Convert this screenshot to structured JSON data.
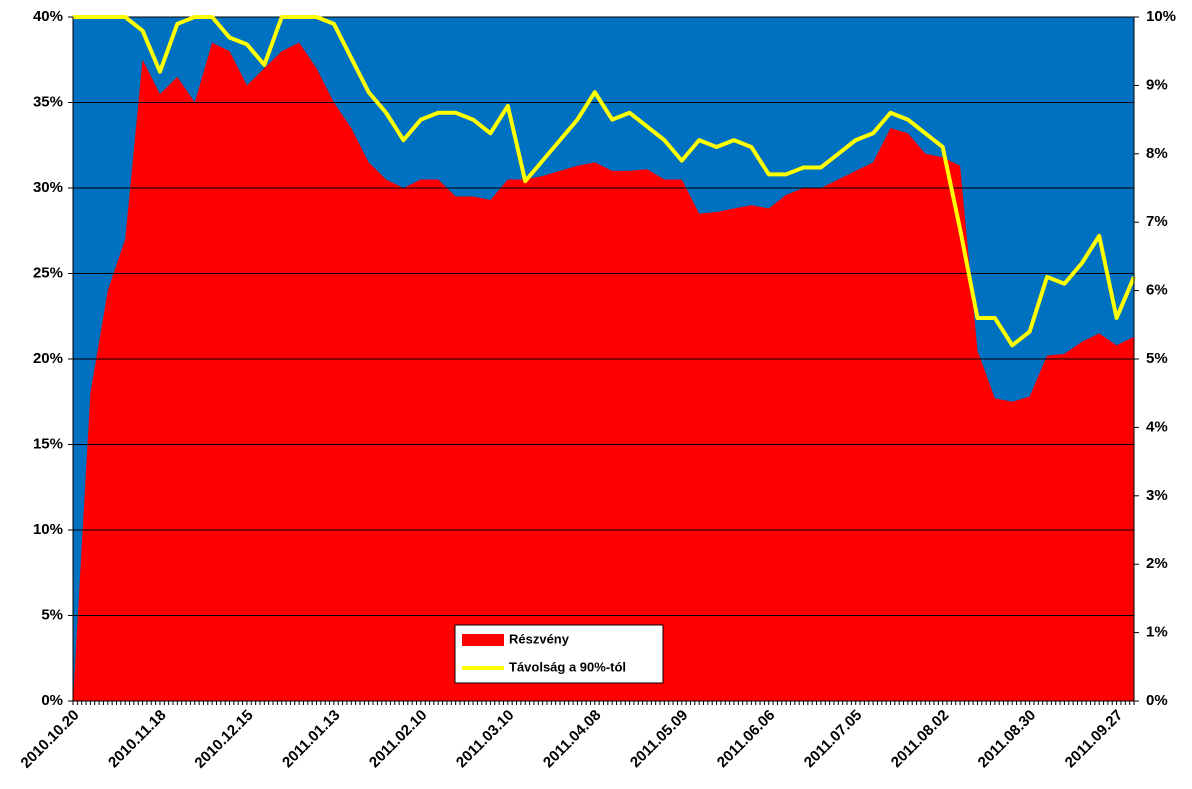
{
  "chart_data": {
    "type": "area_line",
    "categories": [
      "2010.10.20",
      null,
      null,
      null,
      null,
      "2010.11.18",
      null,
      null,
      null,
      null,
      "2010.12.15",
      null,
      null,
      null,
      null,
      "2011.01.13",
      null,
      null,
      null,
      null,
      "2011.02.10",
      null,
      null,
      null,
      null,
      "2011.03.10",
      null,
      null,
      null,
      null,
      "2011.04.08",
      null,
      null,
      null,
      null,
      "2011.05.09",
      null,
      null,
      null,
      null,
      "2011.06.06",
      null,
      null,
      null,
      null,
      "2011.07.05",
      null,
      null,
      null,
      null,
      "2011.08.02",
      null,
      null,
      null,
      null,
      "2011.08.30",
      null,
      null,
      null,
      null,
      "2011.09.27",
      null
    ],
    "series": [
      {
        "name": "Részvény",
        "color": "#ff0000",
        "kind": "area",
        "axis": "y",
        "values": [
          0,
          18,
          24,
          27,
          37.5,
          35.5,
          36.5,
          35,
          38.5,
          38,
          36,
          37,
          38,
          38.5,
          37,
          35,
          33.5,
          31.5,
          30.5,
          30,
          30.5,
          30.5,
          29.5,
          29.5,
          29.3,
          30.5,
          30.5,
          30.7,
          31,
          31.3,
          31.5,
          31,
          31,
          31.1,
          30.5,
          30.5,
          28.5,
          28.6,
          28.8,
          29,
          28.8,
          29.6,
          30,
          30,
          30.5,
          31,
          31.5,
          33.5,
          33.2,
          32,
          31.8,
          31.3,
          20.5,
          17.7,
          17.5,
          17.8,
          20.2,
          20.3,
          21,
          21.5,
          20.8,
          21.3
        ]
      },
      {
        "name": "Távolság a 90%-tól",
        "color": "#ffff00",
        "kind": "line",
        "axis": "y2",
        "values": [
          10,
          10,
          10,
          10,
          9.8,
          9.2,
          9.9,
          10,
          10,
          9.7,
          9.6,
          9.3,
          10,
          10,
          10,
          9.9,
          9.4,
          8.9,
          8.6,
          8.2,
          8.5,
          8.6,
          8.6,
          8.5,
          8.3,
          8.7,
          7.6,
          7.9,
          8.2,
          8.5,
          8.9,
          8.5,
          8.6,
          8.4,
          8.2,
          7.9,
          8.2,
          8.1,
          8.2,
          8.1,
          7.7,
          7.7,
          7.8,
          7.8,
          8.0,
          8.2,
          8.3,
          8.6,
          8.5,
          8.3,
          8.1,
          6.9,
          5.6,
          5.6,
          5.2,
          5.4,
          6.2,
          6.1,
          6.4,
          6.8,
          5.6,
          6.2
        ]
      }
    ],
    "ylim": [
      0,
      40
    ],
    "yticks": [
      {
        "value": 0,
        "label": "0%"
      },
      {
        "value": 5,
        "label": "5%"
      },
      {
        "value": 10,
        "label": "10%"
      },
      {
        "value": 15,
        "label": "15%"
      },
      {
        "value": 20,
        "label": "20%"
      },
      {
        "value": 25,
        "label": "25%"
      },
      {
        "value": 30,
        "label": "30%"
      },
      {
        "value": 35,
        "label": "35%"
      },
      {
        "value": 40,
        "label": "40%"
      }
    ],
    "y2lim": [
      0,
      10
    ],
    "y2ticks": [
      {
        "value": 0,
        "label": "0%"
      },
      {
        "value": 1,
        "label": "1%"
      },
      {
        "value": 2,
        "label": "2%"
      },
      {
        "value": 3,
        "label": "3%"
      },
      {
        "value": 4,
        "label": "4%"
      },
      {
        "value": 5,
        "label": "5%"
      },
      {
        "value": 6,
        "label": "6%"
      },
      {
        "value": 7,
        "label": "7%"
      },
      {
        "value": 8,
        "label": "8%"
      },
      {
        "value": 9,
        "label": "9%"
      },
      {
        "value": 10,
        "label": "10%"
      }
    ],
    "background": "#0070c0",
    "grid": true,
    "legend": "lower center"
  }
}
